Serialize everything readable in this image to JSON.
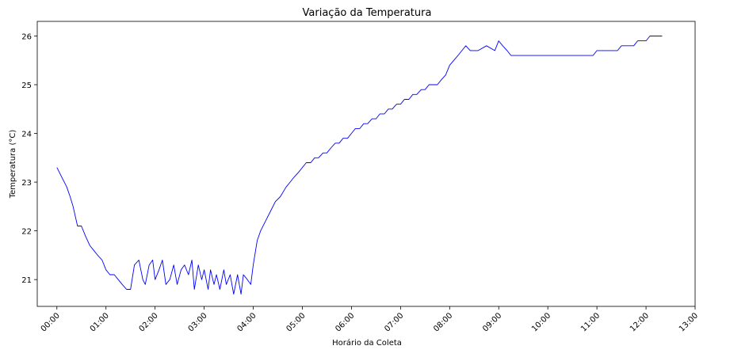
{
  "chart_data": {
    "type": "line",
    "title": "Variação da Temperatura",
    "xlabel": "Horário da Coleta",
    "ylabel": "Temperatura (°C)",
    "xlim": [
      -0.4,
      13.0
    ],
    "ylim": [
      20.45,
      26.3
    ],
    "x_ticks": [
      0,
      1,
      2,
      3,
      4,
      5,
      6,
      7,
      8,
      9,
      10,
      11,
      12,
      13
    ],
    "x_tick_labels": [
      "00:00",
      "01:00",
      "02:00",
      "03:00",
      "04:00",
      "05:00",
      "06:00",
      "07:00",
      "08:00",
      "09:00",
      "10:00",
      "11:00",
      "12:00",
      "13:00"
    ],
    "y_ticks": [
      21,
      22,
      23,
      24,
      25,
      26
    ],
    "y_tick_labels": [
      "21",
      "22",
      "23",
      "24",
      "25",
      "26"
    ],
    "grid": false,
    "colors": {
      "line": "#0000ff"
    },
    "series": [
      {
        "x": [
          0.0,
          0.1,
          0.2,
          0.27,
          0.33,
          0.42,
          0.5,
          0.58,
          0.67,
          0.75,
          0.83,
          0.92,
          1.0,
          1.08,
          1.17,
          1.25,
          1.33,
          1.42,
          1.5,
          1.58,
          1.67,
          1.75,
          1.8,
          1.88,
          1.95,
          2.0,
          2.08,
          2.15,
          2.22,
          2.3,
          2.38,
          2.45,
          2.53,
          2.6,
          2.68,
          2.75,
          2.8,
          2.88,
          2.95,
          3.0,
          3.08,
          3.13,
          3.2,
          3.25,
          3.32,
          3.4,
          3.45,
          3.53,
          3.6,
          3.68,
          3.75,
          3.8,
          3.88,
          3.95,
          4.0,
          4.08,
          4.15,
          4.25,
          4.35,
          4.45,
          4.55,
          4.67,
          4.75,
          4.83,
          4.92,
          5.0,
          5.08,
          5.17,
          5.25,
          5.33,
          5.42,
          5.5,
          5.58,
          5.67,
          5.75,
          5.83,
          5.92,
          6.0,
          6.08,
          6.17,
          6.25,
          6.33,
          6.42,
          6.5,
          6.58,
          6.67,
          6.75,
          6.83,
          6.92,
          7.0,
          7.08,
          7.17,
          7.25,
          7.33,
          7.42,
          7.5,
          7.58,
          7.67,
          7.75,
          7.83,
          7.92,
          8.0,
          8.17,
          8.25,
          8.33,
          8.42,
          8.5,
          8.58,
          8.75,
          8.92,
          9.0,
          9.08,
          9.17,
          9.25,
          9.33,
          9.42,
          9.5,
          10.0,
          10.5,
          10.92,
          11.0,
          11.42,
          11.5,
          11.75,
          11.83,
          12.0,
          12.08,
          12.33
        ],
        "y": [
          23.3,
          23.1,
          22.9,
          22.7,
          22.5,
          22.1,
          22.1,
          21.9,
          21.7,
          21.6,
          21.5,
          21.4,
          21.2,
          21.1,
          21.1,
          21.0,
          20.9,
          20.8,
          20.8,
          21.3,
          21.4,
          21.0,
          20.9,
          21.3,
          21.4,
          21.0,
          21.2,
          21.4,
          20.9,
          21.0,
          21.3,
          20.9,
          21.2,
          21.3,
          21.1,
          21.4,
          20.8,
          21.3,
          21.0,
          21.2,
          20.8,
          21.2,
          20.9,
          21.1,
          20.8,
          21.2,
          20.9,
          21.1,
          20.7,
          21.1,
          20.7,
          21.1,
          21.0,
          20.9,
          21.3,
          21.8,
          22.0,
          22.2,
          22.4,
          22.6,
          22.7,
          22.9,
          23.0,
          23.1,
          23.2,
          23.3,
          23.4,
          23.4,
          23.5,
          23.5,
          23.6,
          23.6,
          23.7,
          23.8,
          23.8,
          23.9,
          23.9,
          24.0,
          24.1,
          24.1,
          24.2,
          24.2,
          24.3,
          24.3,
          24.4,
          24.4,
          24.5,
          24.5,
          24.6,
          24.6,
          24.7,
          24.7,
          24.8,
          24.8,
          24.9,
          24.9,
          25.0,
          25.0,
          25.0,
          25.1,
          25.2,
          25.4,
          25.6,
          25.7,
          25.8,
          25.7,
          25.7,
          25.7,
          25.8,
          25.7,
          25.9,
          25.8,
          25.7,
          25.6,
          25.6,
          25.6,
          25.6,
          25.6,
          25.6,
          25.6,
          25.7,
          25.7,
          25.8,
          25.8,
          25.9,
          25.9,
          26.0,
          26.0
        ]
      }
    ]
  }
}
